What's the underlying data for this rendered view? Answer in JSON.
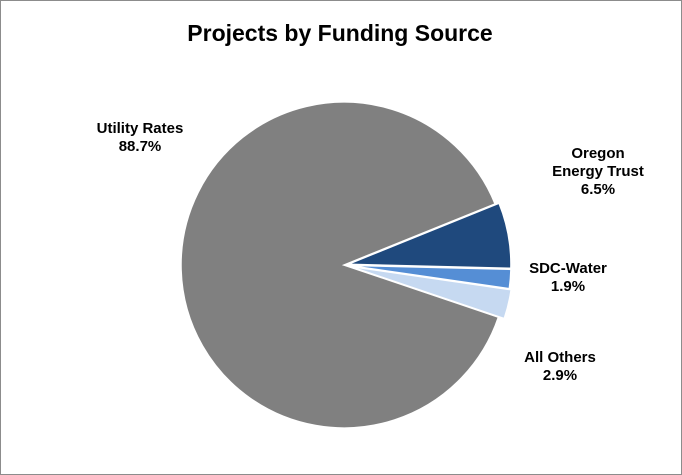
{
  "chart_data": {
    "type": "pie",
    "title": "Projects by Funding Source",
    "slices": [
      {
        "label_lines": [
          "Utility Rates"
        ],
        "pct_label": "88.7%",
        "value": 88.7,
        "color": "#808080"
      },
      {
        "label_lines": [
          "Oregon",
          "Energy Trust"
        ],
        "pct_label": "6.5%",
        "value": 6.5,
        "color": "#1f497d"
      },
      {
        "label_lines": [
          "SDC-Water"
        ],
        "pct_label": "1.9%",
        "value": 1.9,
        "color": "#558ed5"
      },
      {
        "label_lines": [
          "All Others"
        ],
        "pct_label": "2.9%",
        "value": 2.9,
        "color": "#c6d9f1"
      }
    ]
  }
}
